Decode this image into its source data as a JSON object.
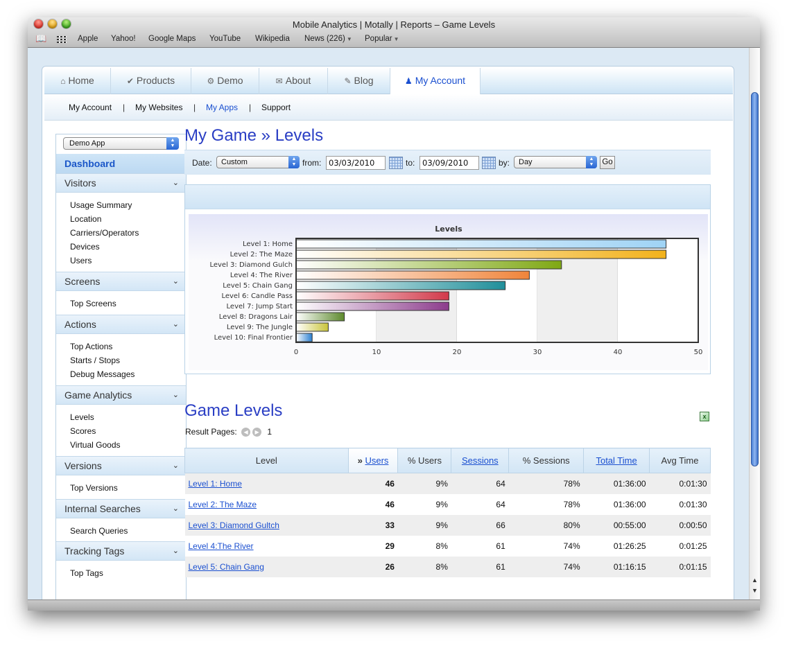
{
  "window": {
    "title": "Mobile Analytics | Motally | Reports – Game Levels"
  },
  "bookmarks": [
    {
      "label": "Apple"
    },
    {
      "label": "Yahoo!"
    },
    {
      "label": "Google Maps"
    },
    {
      "label": "YouTube"
    },
    {
      "label": "Wikipedia"
    },
    {
      "label": "News (226)"
    },
    {
      "label": "Popular"
    }
  ],
  "tabs": [
    {
      "label": "Home",
      "icon": "home-icon"
    },
    {
      "label": "Products",
      "icon": "check-icon"
    },
    {
      "label": "Demo",
      "icon": "gear-icon"
    },
    {
      "label": "About",
      "icon": "speech-icon"
    },
    {
      "label": "Blog",
      "icon": "pencil-icon"
    },
    {
      "label": "My Account",
      "icon": "person-icon"
    }
  ],
  "subnav": [
    {
      "label": "My Account"
    },
    {
      "label": "My Websites"
    },
    {
      "label": "My Apps"
    },
    {
      "label": "Support"
    }
  ],
  "sidebar": {
    "app_select": "Demo App",
    "dashboard": "Dashboard",
    "sections": [
      {
        "title": "Visitors",
        "items": [
          "Usage Summary",
          "Location",
          "Carriers/Operators",
          "Devices",
          "Users"
        ]
      },
      {
        "title": "Screens",
        "items": [
          "Top Screens"
        ]
      },
      {
        "title": "Actions",
        "items": [
          "Top Actions",
          "Starts / Stops",
          "Debug Messages"
        ]
      },
      {
        "title": "Game Analytics",
        "items": [
          "Levels",
          "Scores",
          "Virtual Goods"
        ]
      },
      {
        "title": "Versions",
        "items": [
          "Top Versions"
        ]
      },
      {
        "title": "Internal Searches",
        "items": [
          "Search Queries"
        ]
      },
      {
        "title": "Tracking Tags",
        "items": [
          "Top Tags"
        ]
      }
    ]
  },
  "main": {
    "title": "My Game » Levels",
    "date_bar": {
      "date_label": "Date:",
      "date_range": "Custom",
      "from_label": "from:",
      "from_value": "03/03/2010",
      "to_label": "to:",
      "to_value": "03/09/2010",
      "by_label": "by:",
      "by_value": "Day",
      "go_label": "Go"
    },
    "levels_title": "Game Levels",
    "result_pages_label": "Result Pages:",
    "page_number": "1"
  },
  "chart_data": {
    "type": "bar",
    "orientation": "horizontal",
    "title": "Levels",
    "categories": [
      "Level 1: Home",
      "Level 2: The Maze",
      "Level 3: Diamond Gulch",
      "Level 4: The River",
      "Level 5: Chain Gang",
      "Level 6: Candle Pass",
      "Level 7: Jump Start",
      "Level 8: Dragons Lair",
      "Level 9: The Jungle",
      "Level 10: Final Frontier"
    ],
    "values": [
      46,
      46,
      33,
      29,
      26,
      19,
      19,
      6,
      4,
      2
    ],
    "colors": [
      "#9fd3f5",
      "#f2b21c",
      "#7fa814",
      "#f0843a",
      "#208f9a",
      "#d2394a",
      "#8c3c8c",
      "#5d8a2c",
      "#c9c43a",
      "#2a7fd0"
    ],
    "xticks": [
      "0",
      "10",
      "20",
      "30",
      "40",
      "50"
    ],
    "xlim": [
      0,
      50
    ],
    "grid": true
  },
  "table": {
    "columns": [
      {
        "label": "Level",
        "sortable": false
      },
      {
        "label": "Users",
        "sortable": true,
        "sorted": true,
        "marker": "»"
      },
      {
        "label": "% Users",
        "sortable": false
      },
      {
        "label": "Sessions",
        "sortable": true
      },
      {
        "label": "% Sessions",
        "sortable": false
      },
      {
        "label": "Total Time",
        "sortable": true
      },
      {
        "label": "Avg Time",
        "sortable": false
      }
    ],
    "rows": [
      {
        "level": "Level 1: Home",
        "users": "46",
        "pct_users": "9%",
        "sessions": "64",
        "pct_sessions": "78%",
        "total_time": "01:36:00",
        "avg_time": "0:01:30"
      },
      {
        "level": "Level 2: The Maze",
        "users": "46",
        "pct_users": "9%",
        "sessions": "64",
        "pct_sessions": "78%",
        "total_time": "01:36:00",
        "avg_time": "0:01:30"
      },
      {
        "level": "Level 3: Diamond Gultch",
        "users": "33",
        "pct_users": "9%",
        "sessions": "66",
        "pct_sessions": "80%",
        "total_time": "00:55:00",
        "avg_time": "0:00:50"
      },
      {
        "level": "Level 4:The River",
        "users": "29",
        "pct_users": "8%",
        "sessions": "61",
        "pct_sessions": "74%",
        "total_time": "01:26:25",
        "avg_time": "0:01:25"
      },
      {
        "level": "Level 5: Chain Gang",
        "users": "26",
        "pct_users": "8%",
        "sessions": "61",
        "pct_sessions": "74%",
        "total_time": "01:16:15",
        "avg_time": "0:01:15"
      }
    ]
  }
}
